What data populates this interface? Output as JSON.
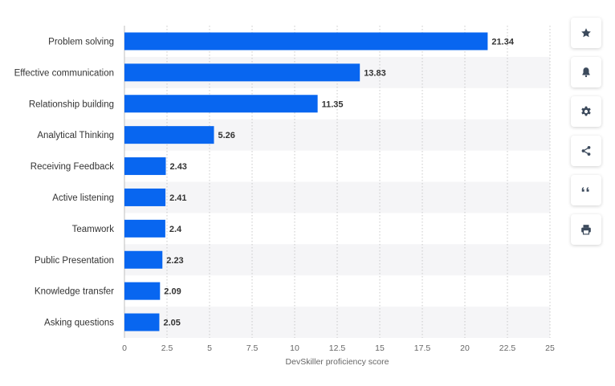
{
  "chart_data": {
    "type": "bar",
    "orientation": "horizontal",
    "categories": [
      "Problem solving",
      "Effective communication",
      "Relationship building",
      "Analytical Thinking",
      "Receiving Feedback",
      "Active listening",
      "Teamwork",
      "Public Presentation",
      "Knowledge transfer",
      "Asking questions"
    ],
    "values": [
      21.34,
      13.83,
      11.35,
      5.26,
      2.43,
      2.41,
      2.4,
      2.23,
      2.09,
      2.05
    ],
    "value_labels": [
      "21.34",
      "13.83",
      "11.35",
      "5.26",
      "2.43",
      "2.41",
      "2.4",
      "2.23",
      "2.09",
      "2.05"
    ],
    "xlabel": "DevSkiller proficiency score",
    "xlim": [
      0,
      25
    ],
    "xticks": [
      0,
      2.5,
      5,
      7.5,
      10,
      12.5,
      15,
      17.5,
      20,
      22.5,
      25
    ],
    "xtick_labels": [
      "0",
      "2.5",
      "5",
      "7.5",
      "10",
      "12.5",
      "15",
      "17.5",
      "20",
      "22.5",
      "25"
    ],
    "grid": "vertical-dotted",
    "bar_color": "#0866f0",
    "band_color": "#f5f5f7"
  },
  "toolbar": [
    {
      "name": "star-icon"
    },
    {
      "name": "bell-icon"
    },
    {
      "name": "gear-icon"
    },
    {
      "name": "share-icon"
    },
    {
      "name": "quote-icon"
    },
    {
      "name": "print-icon"
    }
  ]
}
